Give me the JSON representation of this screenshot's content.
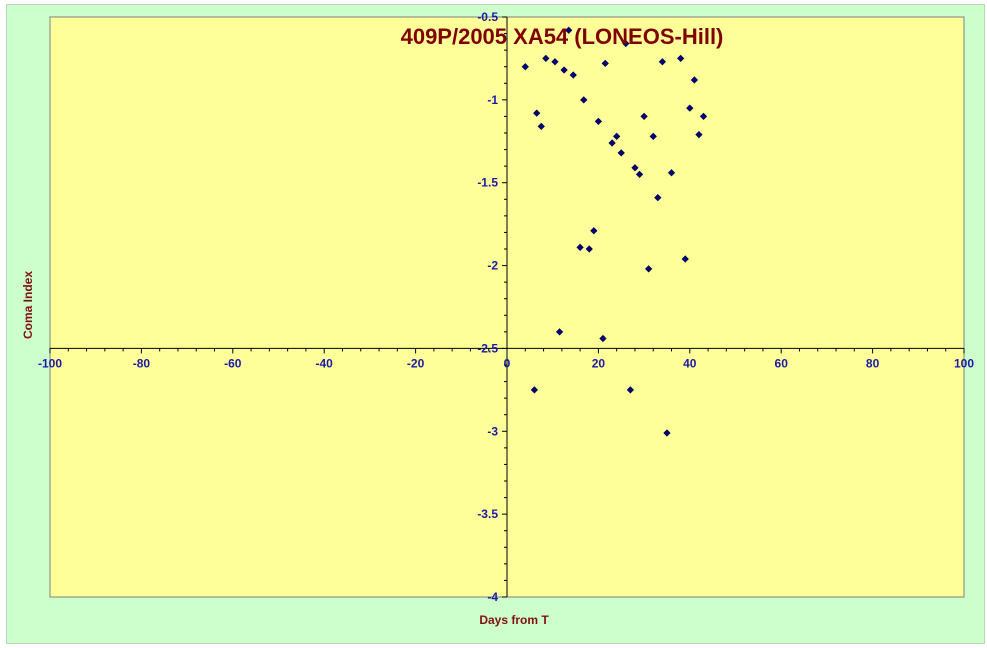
{
  "chart_data": {
    "type": "scatter",
    "title": "409P/2005 XA54 (LONEOS-Hill)",
    "xlabel": "Days from T",
    "ylabel": "Coma Index",
    "xlim": [
      -100,
      100
    ],
    "ylim": [
      -4,
      -0.5
    ],
    "x_ticks": [
      "-100",
      "-80",
      "-60",
      "-40",
      "-20",
      "0",
      "20",
      "40",
      "60",
      "80",
      "100"
    ],
    "y_ticks": [
      "-0.5",
      "-1",
      "-1.5",
      "-2",
      "-2.5",
      "-3",
      "-3.5",
      "-4"
    ],
    "grid": false,
    "legend": "none",
    "colors": {
      "plot_background": "#ffff99",
      "chart_background": "#ccffcc",
      "marker": "#000080",
      "title": "#800000",
      "tick_labels": "#1a1aa6"
    },
    "series": [
      {
        "marker": "diamond",
        "points": [
          [
            4,
            -0.8
          ],
          [
            6,
            -2.75
          ],
          [
            6.5,
            -1.08
          ],
          [
            7.5,
            -1.16
          ],
          [
            8.5,
            -0.75
          ],
          [
            10.5,
            -0.77
          ],
          [
            11.5,
            -2.4
          ],
          [
            12.5,
            -0.82
          ],
          [
            13.5,
            -0.58
          ],
          [
            14.5,
            -0.85
          ],
          [
            16,
            -1.89
          ],
          [
            16.8,
            -1.0
          ],
          [
            18,
            -1.9
          ],
          [
            19,
            -1.79
          ],
          [
            20,
            -1.13
          ],
          [
            21,
            -2.44
          ],
          [
            21.5,
            -0.78
          ],
          [
            23,
            -1.26
          ],
          [
            24,
            -1.22
          ],
          [
            25,
            -1.32
          ],
          [
            26,
            -0.66
          ],
          [
            27,
            -2.75
          ],
          [
            28,
            -1.41
          ],
          [
            29,
            -1.45
          ],
          [
            30,
            -1.1
          ],
          [
            31,
            -2.02
          ],
          [
            32,
            -1.22
          ],
          [
            33,
            -1.59
          ],
          [
            34,
            -0.77
          ],
          [
            36,
            -1.44
          ],
          [
            38,
            -0.75
          ],
          [
            39,
            -1.96
          ],
          [
            40,
            -1.05
          ],
          [
            41,
            -0.88
          ],
          [
            42,
            -1.21
          ],
          [
            43,
            -1.1
          ],
          [
            35,
            -3.01
          ]
        ]
      }
    ]
  }
}
